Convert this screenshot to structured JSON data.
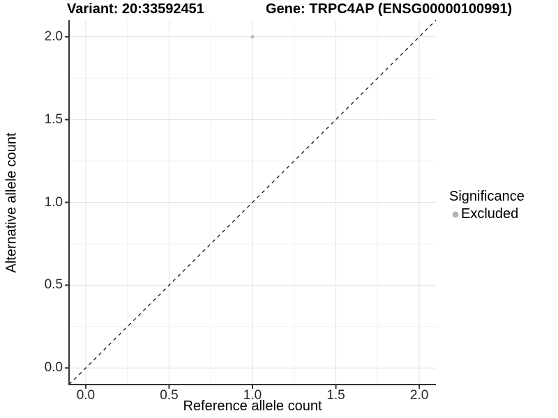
{
  "chart_data": {
    "type": "scatter",
    "title_left": "Variant: 20:33592451",
    "title_right": "Gene: TRPC4AP (ENSG00000100991)",
    "xlabel": "Reference allele count",
    "ylabel": "Alternative allele count",
    "xlim": [
      -0.1,
      2.1
    ],
    "ylim": [
      -0.1,
      2.1
    ],
    "x_ticks": [
      0.0,
      0.5,
      1.0,
      1.5,
      2.0
    ],
    "y_ticks": [
      0.0,
      0.5,
      1.0,
      1.5,
      2.0
    ],
    "x_tick_labels": [
      "0.0",
      "0.5",
      "1.0",
      "1.5",
      "2.0"
    ],
    "y_tick_labels": [
      "0.0",
      "0.5",
      "1.0",
      "1.5",
      "2.0"
    ],
    "minor_ticks": [
      0.25,
      0.75,
      1.25,
      1.75
    ],
    "points": [
      {
        "x": 1.0,
        "y": 2.0,
        "series": "Excluded"
      }
    ],
    "reference_line": {
      "type": "identity",
      "style": "dashed",
      "color": "#111111"
    },
    "legend": {
      "title": "Significance",
      "position": "right",
      "entries": [
        {
          "label": "Excluded",
          "color": "#b3b3b3"
        }
      ]
    },
    "grid": true,
    "colors": {
      "background": "#ffffff",
      "point": "#bdbdbd",
      "grid_major": "#e3e3e3",
      "grid_minor": "#f1f1f1",
      "axis_line": "#333333",
      "tick_text": "#262626",
      "title_text": "#000000"
    }
  }
}
